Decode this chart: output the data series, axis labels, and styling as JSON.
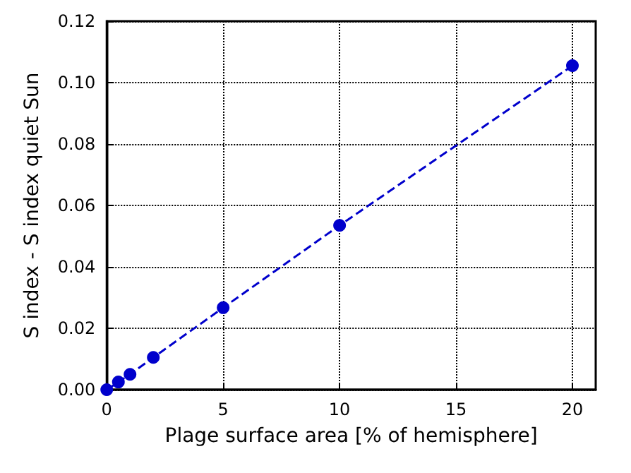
{
  "chart_data": {
    "type": "line",
    "xlabel": "Plage surface area [% of hemisphere]",
    "ylabel": "S index - S index quiet Sun",
    "x": [
      0,
      0.5,
      1,
      2,
      5,
      10,
      20
    ],
    "series": [
      {
        "color": "#0000cc",
        "values": [
          0,
          0.0025,
          0.005,
          0.0105,
          0.0267,
          0.0535,
          0.1055
        ]
      }
    ],
    "xlim": [
      0,
      21
    ],
    "xticks": [
      0,
      5,
      10,
      15,
      20
    ],
    "ylim": [
      0,
      0.12
    ],
    "yticks": [
      {
        "value": 0,
        "label": "0.00"
      },
      {
        "value": 0.02,
        "label": "0.02"
      },
      {
        "value": 0.04,
        "label": "0.04"
      },
      {
        "value": 0.06,
        "label": "0.06"
      },
      {
        "value": 0.08,
        "label": "0.08"
      },
      {
        "value": 0.1,
        "label": "0.10"
      },
      {
        "value": 0.12,
        "label": "0.12"
      }
    ],
    "grid": true,
    "marker": "circle",
    "line_style": "dashed"
  }
}
